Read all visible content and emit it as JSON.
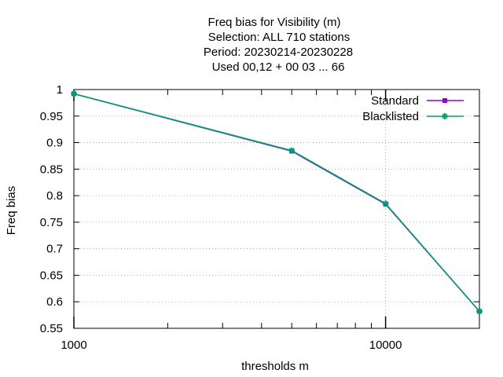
{
  "chart_data": {
    "type": "line",
    "title_lines": [
      "Freq bias  for Visibility (m)",
      "Selection: ALL    710 stations",
      "Period: 20230214-20230228",
      "Used  00,12  + 00 03 ... 66"
    ],
    "xlabel": "thresholds m",
    "ylabel": "Freq bias",
    "x_scale": "log",
    "xlim": [
      1000,
      20000
    ],
    "ylim": [
      0.55,
      1.0
    ],
    "x_ticks": [
      1000,
      10000
    ],
    "x_tick_labels": [
      "1000",
      "10000"
    ],
    "y_ticks": [
      0.55,
      0.6,
      0.65,
      0.7,
      0.75,
      0.8,
      0.85,
      0.9,
      0.95,
      1.0
    ],
    "y_tick_labels": [
      "0.55",
      "0.6",
      "0.65",
      "0.7",
      "0.75",
      "0.8",
      "0.85",
      "0.9",
      "0.95",
      "1"
    ],
    "grid": true,
    "legend_position": "top-right",
    "series": [
      {
        "name": "Standard",
        "color": "#9400d3",
        "marker": "square",
        "x": [
          1000,
          5000,
          10000,
          20000
        ],
        "values": [
          0.992,
          0.884,
          0.784,
          0.582
        ]
      },
      {
        "name": "Blacklisted",
        "color": "#009e73",
        "marker": "star",
        "x": [
          1000,
          5000,
          10000,
          20000
        ],
        "values": [
          0.992,
          0.885,
          0.785,
          0.582
        ]
      }
    ]
  }
}
